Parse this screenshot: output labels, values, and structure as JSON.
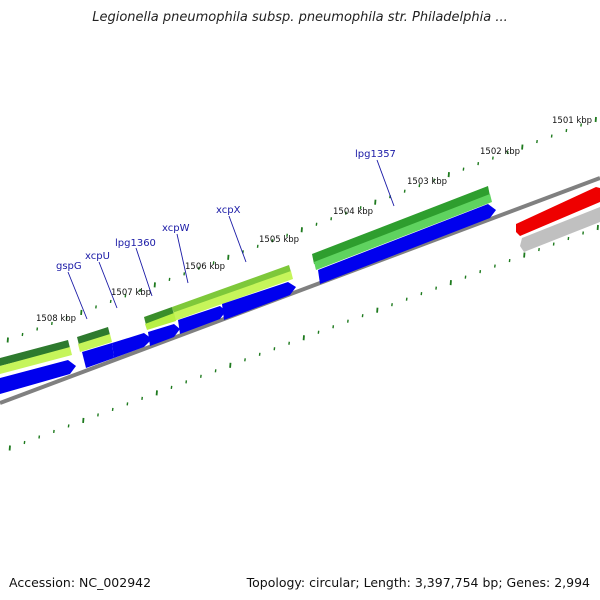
{
  "header": {
    "title": "Legionella pneumophila subsp. pneumophila str. Philadelphia ..."
  },
  "footer": {
    "accession": "Accession: NC_002942",
    "summary": "Topology: circular; Length: 3,397,754 bp; Genes: 2,994"
  },
  "map": {
    "kbp_labels": [
      "1501 kbp",
      "1502 kbp",
      "1503 kbp",
      "1504 kbp",
      "1505 kbp",
      "1506 kbp",
      "1507 kbp",
      "1508 kbp"
    ],
    "gene_labels": [
      "lpg1357",
      "xcpX",
      "xcpW",
      "lpg1360",
      "xcpU",
      "gspG"
    ]
  },
  "colors": {
    "backbone": "#808080",
    "tick": "#1e7a1e",
    "cds": "#0000ee",
    "feature_green": "#3cb43c",
    "feature_lime": "#a6e63c",
    "feature_red": "#ee0000",
    "feature_grey": "#c0c0c0",
    "label_blue": "#1a1aa6"
  }
}
